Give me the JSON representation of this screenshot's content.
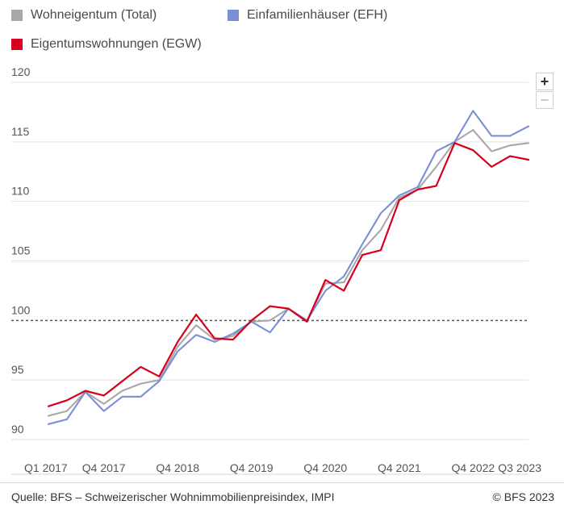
{
  "legend": {
    "items": [
      {
        "label": "Wohneigentum (Total)",
        "color": "#a8a8a8"
      },
      {
        "label": "Einfamilienhäuser (EFH)",
        "color": "#7b8fd6"
      },
      {
        "label": "Eigentumswohnungen (EGW)",
        "color": "#d7001c"
      }
    ]
  },
  "zoom": {
    "in_label": "+",
    "out_label": "−"
  },
  "footer": {
    "source": "Quelle: BFS – Schweizerischer Wohnimmobilienpreisindex, IMPI",
    "copyright": "© BFS 2023"
  },
  "chart_data": {
    "type": "line",
    "title": "",
    "xlabel": "",
    "ylabel": "",
    "ylim": [
      90,
      120
    ],
    "yticks": [
      90,
      95,
      100,
      105,
      110,
      115,
      120
    ],
    "reference_line": 100,
    "grid": true,
    "legend_position": "top-left",
    "categories": [
      "Q1 2017",
      "Q2 2017",
      "Q3 2017",
      "Q4 2017",
      "Q1 2018",
      "Q2 2018",
      "Q3 2018",
      "Q4 2018",
      "Q1 2019",
      "Q2 2019",
      "Q3 2019",
      "Q4 2019",
      "Q1 2020",
      "Q2 2020",
      "Q3 2020",
      "Q4 2020",
      "Q1 2021",
      "Q2 2021",
      "Q3 2021",
      "Q4 2021",
      "Q1 2022",
      "Q2 2022",
      "Q3 2022",
      "Q4 2022",
      "Q1 2023",
      "Q2 2023",
      "Q3 2023"
    ],
    "xtick_labels": [
      "Q1 2017",
      "Q4 2017",
      "Q4 2018",
      "Q4 2019",
      "Q4 2020",
      "Q4 2021",
      "Q4 2022",
      "Q3 2023"
    ],
    "series": [
      {
        "name": "Wohneigentum (Total)",
        "color": "#a8a8a8",
        "values": [
          92.0,
          92.4,
          94.0,
          93.0,
          94.1,
          94.7,
          95.0,
          97.8,
          99.6,
          98.4,
          98.7,
          99.9,
          100.0,
          101.0,
          100.0,
          103.1,
          103.2,
          105.9,
          107.6,
          110.3,
          111.0,
          112.9,
          115.0,
          116.0,
          114.2,
          114.7,
          114.9
        ]
      },
      {
        "name": "Einfamilienhäuser (EFH)",
        "color": "#7b8fd6",
        "values": [
          91.3,
          91.7,
          94.0,
          92.4,
          93.6,
          93.6,
          94.9,
          97.4,
          98.8,
          98.2,
          98.9,
          99.9,
          99.0,
          101.0,
          100.0,
          102.5,
          103.7,
          106.4,
          109.0,
          110.5,
          111.2,
          114.2,
          115.0,
          117.6,
          115.5,
          115.5,
          116.3
        ]
      },
      {
        "name": "Eigentumswohnungen (EGW)",
        "color": "#d7001c",
        "values": [
          92.8,
          93.3,
          94.1,
          93.7,
          94.9,
          96.1,
          95.3,
          98.2,
          100.5,
          98.5,
          98.4,
          100.0,
          101.2,
          101.0,
          99.9,
          103.4,
          102.5,
          105.5,
          105.9,
          110.1,
          111.0,
          111.3,
          114.9,
          114.3,
          112.9,
          113.8,
          113.5
        ]
      }
    ]
  }
}
